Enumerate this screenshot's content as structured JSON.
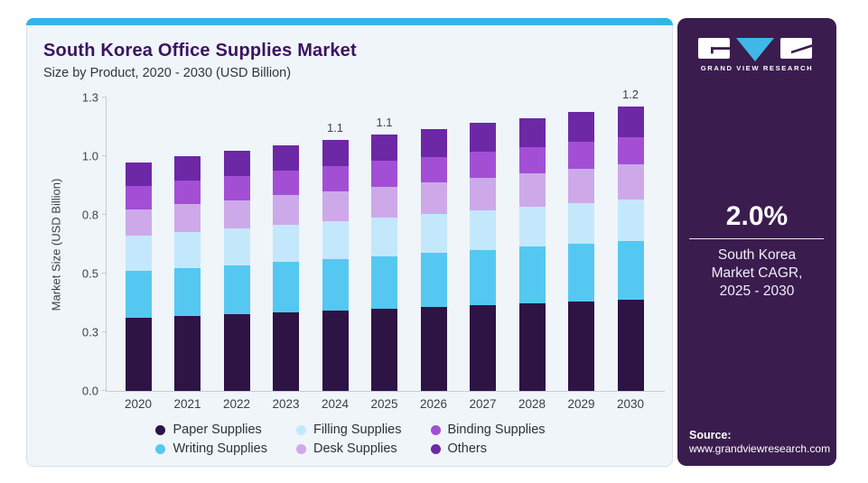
{
  "header": {
    "title": "South Korea Office Supplies Market",
    "subtitle": "Size by Product, 2020 - 2030 (USD Billion)"
  },
  "info_panel": {
    "logo_text": "GRAND VIEW RESEARCH",
    "cagr_value": "2.0%",
    "cagr_lines": [
      "South Korea",
      "Market CAGR,",
      "2025 - 2030"
    ],
    "source_label": "Source:",
    "source_url": "www.grandviewresearch.com",
    "background": "#3a1d4e"
  },
  "colors": {
    "accent_strip": "#33b3e7",
    "title": "#3c1361",
    "logo_triangle": "#41b6e8"
  },
  "chart_data": {
    "type": "bar",
    "stacked": true,
    "title": "South Korea Office Supplies Market",
    "subtitle": "Size by Product, 2020 - 2030 (USD Billion)",
    "categories": [
      "2020",
      "2021",
      "2022",
      "2023",
      "2024",
      "2025",
      "2026",
      "2027",
      "2028",
      "2029",
      "2030"
    ],
    "series": [
      {
        "name": "Paper Supplies",
        "color": "#2e1345",
        "values": [
          0.31,
          0.318,
          0.326,
          0.334,
          0.342,
          0.35,
          0.358,
          0.366,
          0.374,
          0.382,
          0.39
        ]
      },
      {
        "name": "Writing Supplies",
        "color": "#55c8f2",
        "values": [
          0.2,
          0.205,
          0.21,
          0.215,
          0.22,
          0.225,
          0.23,
          0.235,
          0.24,
          0.245,
          0.25
        ]
      },
      {
        "name": "Filling Supplies",
        "color": "#c4e8fb",
        "values": [
          0.15,
          0.153,
          0.155,
          0.158,
          0.16,
          0.163,
          0.165,
          0.168,
          0.17,
          0.173,
          0.175
        ]
      },
      {
        "name": "Desk Supplies",
        "color": "#cda9ea",
        "values": [
          0.115,
          0.119,
          0.122,
          0.126,
          0.129,
          0.133,
          0.136,
          0.14,
          0.143,
          0.147,
          0.15
        ]
      },
      {
        "name": "Binding Supplies",
        "color": "#a24fd5",
        "values": [
          0.1,
          0.102,
          0.103,
          0.105,
          0.106,
          0.108,
          0.109,
          0.111,
          0.112,
          0.114,
          0.115
        ]
      },
      {
        "name": "Others",
        "color": "#6d28a6",
        "values": [
          0.1,
          0.103,
          0.106,
          0.109,
          0.112,
          0.115,
          0.118,
          0.121,
          0.124,
          0.127,
          0.13
        ]
      }
    ],
    "totals": [
      0.975,
      1.0,
      1.022,
      1.047,
      1.069,
      1.094,
      1.116,
      1.141,
      1.163,
      1.188,
      1.21
    ],
    "value_labels": [
      "",
      "",
      "",
      "",
      "1.1",
      "1.1",
      "",
      "",
      "",
      "",
      "1.2"
    ],
    "ylabel": "Market Size (USD Billion)",
    "xlabel": "",
    "ylim": [
      0,
      1.25
    ],
    "yticks": [
      {
        "value": 0.0,
        "label": "0.0"
      },
      {
        "value": 0.25,
        "label": "0.3"
      },
      {
        "value": 0.5,
        "label": "0.5"
      },
      {
        "value": 0.75,
        "label": "0.8"
      },
      {
        "value": 1.0,
        "label": "1.0"
      },
      {
        "value": 1.25,
        "label": "1.3"
      }
    ],
    "grid": false,
    "legend_position": "bottom",
    "legend_order": [
      "Paper Supplies",
      "Filling Supplies",
      "Binding Supplies",
      "Writing Supplies",
      "Desk Supplies",
      "Others"
    ]
  }
}
